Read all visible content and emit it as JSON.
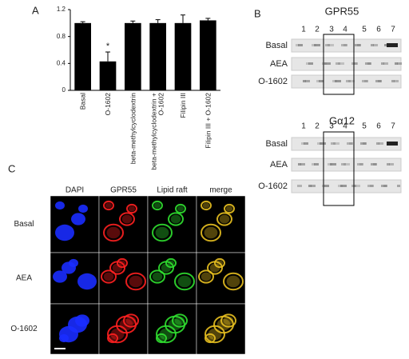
{
  "chart_data": {
    "type": "bar",
    "panel": "A",
    "categories": [
      "Basal",
      "O-1602",
      "beta-methylcyclodextrin",
      "beta-methylcyclodextrin + O-1602",
      "Filipin III",
      "Filipin III + O-1602"
    ],
    "values": [
      1.0,
      0.43,
      1.0,
      1.0,
      1.0,
      1.04
    ],
    "errors": [
      0.02,
      0.14,
      0.03,
      0.05,
      0.12,
      0.03
    ],
    "color": "#000000",
    "annotation": "*",
    "ylim": [
      0,
      1.2
    ],
    "yticks": [
      0,
      0.4,
      0.8,
      1.2
    ]
  },
  "panel_b": {
    "panel": "B",
    "blots": [
      {
        "title": "GPR55",
        "lanes": [
          "1",
          "2",
          "3",
          "4",
          "5",
          "6",
          "7"
        ],
        "rows": [
          "Basal",
          "AEA",
          "O-1602"
        ]
      },
      {
        "title": "Gα12",
        "lanes": [
          "1",
          "2",
          "3",
          "4",
          "5",
          "6",
          "7"
        ],
        "rows": [
          "Basal",
          "AEA",
          "O-1602"
        ]
      }
    ]
  },
  "panel_c": {
    "panel": "C",
    "columns": [
      "DAPI",
      "GPR55",
      "Lipid raft",
      "merge"
    ],
    "rows": [
      "Basal",
      "AEA",
      "O-1602"
    ]
  }
}
